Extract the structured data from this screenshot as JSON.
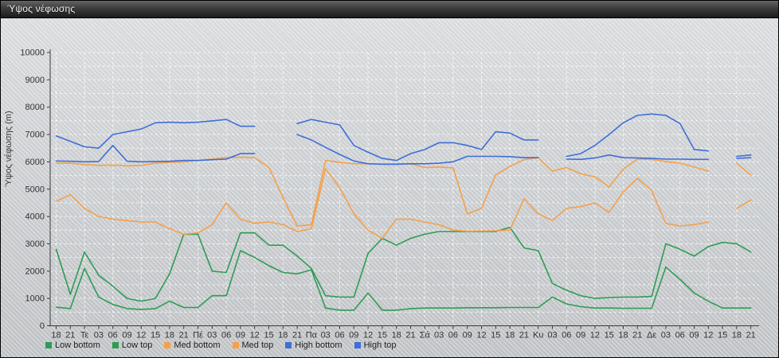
{
  "window": {
    "title": "Ύψος νέφωσης"
  },
  "chart_data": {
    "type": "line",
    "title": "",
    "xlabel": "",
    "ylabel": "Ύψος νέφωσης (m)",
    "ylim": [
      0,
      10000
    ],
    "ytick_step": 1000,
    "grid": true,
    "gridline_color": "#ffffff",
    "axis_color": "#3a3a3a",
    "legend_position": "bottom",
    "x_note": "3-hourly steps; day abbreviations Τε/Πέ/Πα/Σά/Κυ/Δε mark midnight; null = missing data gap",
    "categories": [
      "18",
      "21",
      "Τε",
      "03",
      "06",
      "09",
      "12",
      "15",
      "18",
      "21",
      "Πέ",
      "03",
      "06",
      "09",
      "12",
      "15",
      "18",
      "21",
      "Πα",
      "03",
      "06",
      "09",
      "12",
      "15",
      "18",
      "21",
      "Σά",
      "03",
      "06",
      "09",
      "12",
      "15",
      "18",
      "21",
      "Κυ",
      "03",
      "06",
      "09",
      "12",
      "15",
      "18",
      "21",
      "Δε",
      "03",
      "06",
      "09",
      "12",
      "15",
      "18",
      "21"
    ],
    "series": [
      {
        "name": "Low bottom",
        "color": "#2e9c55",
        "values": [
          680,
          630,
          2100,
          1050,
          780,
          630,
          600,
          630,
          900,
          670,
          670,
          1100,
          1100,
          2750,
          2500,
          2200,
          1950,
          1900,
          2050,
          650,
          570,
          570,
          1200,
          570,
          570,
          630,
          650,
          650,
          650,
          660,
          660,
          660,
          670,
          670,
          670,
          1050,
          800,
          700,
          650,
          650,
          640,
          640,
          640,
          2150,
          1700,
          1200,
          900,
          650,
          650,
          650
        ]
      },
      {
        "name": "Low top",
        "color": "#2e9c55",
        "values": [
          2800,
          1150,
          2700,
          1850,
          1450,
          1000,
          900,
          1000,
          1900,
          3350,
          3350,
          2000,
          1950,
          3400,
          3400,
          2950,
          2950,
          2550,
          2100,
          1100,
          1050,
          1050,
          2650,
          3200,
          2950,
          3200,
          3350,
          3450,
          3450,
          3450,
          3450,
          3450,
          3600,
          2850,
          2750,
          1550,
          1300,
          1100,
          1000,
          1030,
          1050,
          1050,
          1075,
          3000,
          2800,
          2550,
          2900,
          3050,
          3000,
          2700
        ]
      },
      {
        "name": "Med bottom",
        "color": "#f5a04a",
        "values": [
          4550,
          4800,
          4300,
          4000,
          3900,
          3850,
          3800,
          3800,
          3550,
          3350,
          3400,
          3700,
          4500,
          3900,
          3750,
          3800,
          3700,
          3450,
          3550,
          5750,
          5050,
          4100,
          3500,
          3200,
          3900,
          3900,
          3800,
          3700,
          3500,
          3460,
          3470,
          3480,
          3500,
          4650,
          4100,
          3850,
          4300,
          4360,
          4500,
          4150,
          4900,
          5400,
          4950,
          3750,
          3650,
          3700,
          3800,
          null,
          4300,
          4600
        ]
      },
      {
        "name": "Med top",
        "color": "#f5a04a",
        "values": [
          5950,
          5950,
          5900,
          5870,
          5880,
          5850,
          5870,
          5950,
          5980,
          6000,
          6050,
          6100,
          6150,
          6170,
          6150,
          5800,
          4700,
          3650,
          3700,
          6050,
          5980,
          5930,
          5930,
          5920,
          5930,
          5930,
          5790,
          5810,
          5780,
          4090,
          4300,
          5520,
          5830,
          6080,
          6150,
          5660,
          5790,
          5560,
          5450,
          5080,
          5735,
          6100,
          6090,
          6010,
          5950,
          5810,
          5660,
          null,
          5950,
          5510
        ]
      },
      {
        "name": "High bottom",
        "color": "#3e6ed8",
        "values": [
          6030,
          6020,
          6000,
          6010,
          6600,
          6020,
          6000,
          6010,
          6020,
          6050,
          6050,
          6080,
          6100,
          6300,
          6300,
          null,
          null,
          7000,
          6800,
          6530,
          6270,
          6030,
          5930,
          5910,
          5910,
          5930,
          5930,
          5950,
          6000,
          6200,
          6200,
          6200,
          6190,
          6150,
          6150,
          null,
          6100,
          6090,
          6140,
          6250,
          6150,
          6140,
          6125,
          6100,
          6100,
          6090,
          6090,
          null,
          6125,
          6150
        ]
      },
      {
        "name": "High top",
        "color": "#3e6ed8",
        "values": [
          6950,
          6750,
          6550,
          6500,
          7000,
          7100,
          7200,
          7430,
          7450,
          7430,
          7450,
          7500,
          7550,
          7300,
          7300,
          null,
          null,
          7400,
          7550,
          7450,
          7350,
          6600,
          6350,
          6125,
          6050,
          6300,
          6450,
          6700,
          6700,
          6600,
          6450,
          7100,
          7050,
          6800,
          6800,
          null,
          6200,
          6300,
          6600,
          7000,
          7430,
          7700,
          7750,
          7700,
          7400,
          6450,
          6400,
          null,
          6200,
          6250
        ]
      }
    ]
  }
}
